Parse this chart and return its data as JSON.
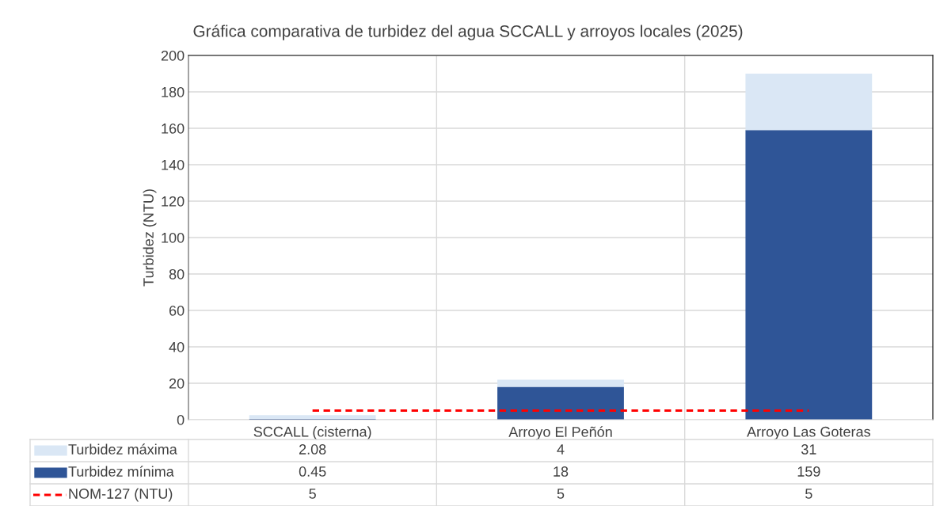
{
  "chart_data": {
    "type": "bar",
    "title": "Gráfica comparativa de turbidez del agua SCCALL y arroyos locales (2025)",
    "ylabel": "Turbidez (NTU)",
    "categories": [
      "SCCALL (cisterna)",
      "Arroyo El Peñón",
      "Arroyo Las Goteras"
    ],
    "stacked": true,
    "series": [
      {
        "name": "Turbidez mínima",
        "color": "#2f5597",
        "values": [
          0.45,
          18,
          159
        ]
      },
      {
        "name": "Turbidez máxima",
        "color": "#dae7f5",
        "values": [
          2.08,
          4,
          31
        ]
      },
      {
        "name": "NOM-127 (NTU)",
        "type": "line",
        "color": "#ff0000",
        "line_style": "dashed",
        "values": [
          5,
          5,
          5
        ]
      }
    ],
    "ylim": [
      0,
      200
    ],
    "yticks": [
      0,
      20,
      40,
      60,
      80,
      100,
      120,
      140,
      160,
      180,
      200
    ],
    "grid": true,
    "data_labels": true,
    "legend": "bottom"
  }
}
